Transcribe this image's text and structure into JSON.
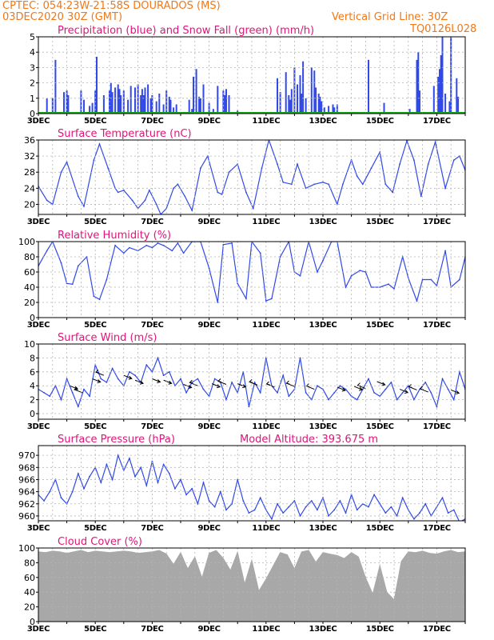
{
  "header": {
    "line1": "CPTEC:   054:23W-21:58S   DOURADOS (MS)",
    "line2": "03DEC2020 30Z (GMT)",
    "vgrid": "Vertical Grid Line: 30Z",
    "code": "TQ0126L028"
  },
  "colors": {
    "header": "#f07818",
    "title": "#e0147a",
    "series": "#3049e8",
    "snow": "#1aa81a",
    "cloud": "#a8a8a8",
    "grid": "#b4b4b4"
  },
  "chart_data": [
    {
      "id": "precip",
      "type": "bar",
      "title": "Precipitation (blue) and Snow Fall (green) (mm/h)",
      "ylim": [
        0,
        5
      ],
      "yticks": [
        0,
        1,
        2,
        3,
        4,
        5
      ],
      "xticks": [
        "3DEC",
        "5DEC",
        "7DEC",
        "9DEC",
        "11DEC",
        "13DEC",
        "15DEC",
        "17DEC"
      ],
      "x": [
        3.3,
        3.5,
        3.6,
        3.9,
        4.0,
        4.05,
        4.5,
        4.6,
        4.8,
        4.9,
        5.0,
        5.05,
        5.3,
        5.5,
        5.55,
        5.6,
        5.7,
        5.8,
        5.85,
        5.9,
        6.0,
        6.15,
        6.25,
        6.4,
        6.5,
        6.6,
        6.65,
        6.7,
        6.75,
        6.85,
        6.95,
        7.0,
        7.15,
        7.25,
        7.4,
        7.5,
        7.6,
        7.65,
        7.75,
        7.85,
        8.3,
        8.4,
        8.45,
        8.55,
        8.65,
        8.7,
        8.8,
        9.0,
        9.15,
        9.3,
        9.5,
        9.55,
        9.6,
        9.7,
        10.0,
        11.4,
        11.5,
        11.7,
        11.8,
        11.85,
        11.9,
        12.0,
        12.1,
        12.2,
        12.25,
        12.3,
        12.4,
        12.6,
        12.7,
        12.75,
        12.85,
        12.9,
        12.95,
        13.05,
        13.2,
        13.35,
        13.4,
        13.5,
        14.6,
        15.15,
        16.05,
        16.3,
        16.35,
        16.4,
        16.9,
        17.05,
        17.1,
        17.15,
        17.2,
        17.3,
        17.45,
        17.5,
        17.7,
        17.75
      ],
      "values": [
        1.0,
        1.0,
        3.5,
        1.4,
        1.5,
        1.2,
        1.5,
        0.9,
        0.5,
        0.7,
        1.5,
        3.7,
        1.2,
        1.5,
        2.0,
        1.4,
        1.7,
        1.9,
        1.6,
        1.2,
        1.5,
        0.9,
        1.8,
        1.7,
        1.9,
        1.2,
        1.6,
        1.2,
        1.7,
        1.9,
        1.0,
        1.2,
        0.8,
        1.3,
        0.6,
        1.5,
        1.1,
        0.9,
        0.4,
        0.6,
        0.9,
        0.3,
        2.4,
        2.9,
        1.1,
        1.0,
        1.9,
        0.7,
        0.3,
        1.8,
        1.5,
        1.2,
        1.6,
        1.2,
        0.2,
        2.3,
        1.4,
        2.7,
        1.2,
        0.9,
        1.6,
        3.0,
        1.9,
        2.5,
        1.3,
        3.4,
        1.0,
        3.0,
        2.8,
        1.7,
        1.3,
        1.1,
        0.8,
        0.4,
        0.5,
        0.6,
        0.4,
        0.6,
        3.5,
        0.7,
        0.3,
        3.5,
        4.0,
        1.5,
        1.8,
        2.4,
        2.9,
        3.8,
        5.0,
        1.3,
        0.8,
        5.0,
        2.3,
        1.1
      ]
    },
    {
      "id": "temp",
      "type": "line",
      "title": "Surface Temperature (nC)",
      "ylim": [
        17.5,
        36
      ],
      "yticks": [
        20,
        24,
        28,
        32,
        36
      ],
      "xticks": [
        "3DEC",
        "5DEC",
        "7DEC",
        "9DEC",
        "11DEC",
        "13DEC",
        "15DEC",
        "17DEC"
      ],
      "x": [
        3.0,
        3.3,
        3.5,
        3.8,
        4.0,
        4.4,
        4.6,
        4.95,
        5.15,
        5.45,
        5.7,
        5.8,
        6.0,
        6.3,
        6.5,
        6.75,
        6.9,
        7.15,
        7.3,
        7.5,
        7.75,
        7.9,
        8.15,
        8.4,
        8.7,
        8.95,
        9.3,
        9.45,
        9.7,
        10.0,
        10.3,
        10.55,
        10.85,
        11.1,
        11.4,
        11.6,
        11.9,
        12.1,
        12.4,
        12.7,
        13.0,
        13.2,
        13.5,
        13.7,
        14.0,
        14.2,
        14.4,
        14.7,
        15.0,
        15.2,
        15.45,
        15.7,
        15.95,
        16.2,
        16.45,
        16.7,
        16.95,
        17.3,
        17.6,
        17.8,
        18.0
      ],
      "values": [
        24.5,
        21.0,
        20.0,
        28.0,
        30.5,
        22.0,
        19.5,
        31.0,
        35.0,
        29.0,
        24.0,
        23.0,
        23.5,
        21.0,
        19.0,
        21.0,
        23.5,
        20.0,
        17.5,
        19.0,
        24.0,
        25.0,
        22.0,
        18.5,
        29.0,
        32.0,
        23.0,
        22.5,
        28.0,
        30.0,
        23.0,
        19.0,
        29.0,
        36.0,
        30.0,
        25.5,
        25.0,
        30.0,
        24.0,
        25.0,
        25.5,
        25.0,
        20.0,
        25.0,
        31.0,
        27.0,
        25.0,
        29.0,
        33.0,
        25.0,
        23.0,
        30.0,
        35.8,
        31.0,
        22.0,
        30.0,
        35.5,
        24.0,
        31.0,
        32.0,
        28.5
      ]
    },
    {
      "id": "rh",
      "type": "line",
      "title": "Relative Humidity (%)",
      "ylim": [
        0,
        100
      ],
      "yticks": [
        0,
        20,
        40,
        60,
        80,
        100
      ],
      "xticks": [
        "3DEC",
        "5DEC",
        "7DEC",
        "9DEC",
        "11DEC",
        "13DEC",
        "15DEC",
        "17DEC"
      ],
      "x": [
        3.0,
        3.3,
        3.5,
        3.8,
        4.0,
        4.2,
        4.4,
        4.7,
        4.95,
        5.15,
        5.4,
        5.7,
        6.0,
        6.2,
        6.5,
        6.8,
        7.0,
        7.2,
        7.4,
        7.7,
        7.9,
        8.1,
        8.4,
        8.7,
        9.0,
        9.3,
        9.5,
        9.8,
        10.0,
        10.3,
        10.5,
        10.8,
        11.0,
        11.2,
        11.5,
        11.8,
        12.0,
        12.2,
        12.5,
        12.8,
        13.0,
        13.3,
        13.5,
        13.8,
        14.0,
        14.3,
        14.5,
        14.7,
        15.0,
        15.3,
        15.5,
        15.8,
        16.0,
        16.3,
        16.5,
        16.8,
        17.0,
        17.3,
        17.5,
        17.8,
        18.0
      ],
      "values": [
        68,
        88,
        100,
        72,
        45,
        44,
        68,
        80,
        28,
        24,
        50,
        95,
        85,
        92,
        88,
        95,
        92,
        98,
        95,
        88,
        98,
        85,
        100,
        100,
        65,
        20,
        96,
        98,
        45,
        25,
        100,
        85,
        22,
        25,
        80,
        100,
        60,
        55,
        100,
        60,
        75,
        100,
        100,
        40,
        55,
        62,
        60,
        40,
        40,
        44,
        38,
        80,
        52,
        22,
        50,
        50,
        42,
        88,
        40,
        50,
        80
      ]
    },
    {
      "id": "wind",
      "type": "line",
      "title": "Surface Wind (m/s)",
      "ylim": [
        -0.8,
        10
      ],
      "yticks": [
        0,
        2,
        4,
        6,
        8,
        10
      ],
      "xticks": [
        "3DEC",
        "5DEC",
        "7DEC",
        "9DEC",
        "11DEC",
        "13DEC",
        "15DEC",
        "17DEC"
      ],
      "x": [
        3.0,
        3.2,
        3.4,
        3.6,
        3.8,
        4.0,
        4.2,
        4.4,
        4.6,
        4.8,
        5.0,
        5.2,
        5.4,
        5.6,
        5.8,
        6.0,
        6.2,
        6.4,
        6.6,
        6.8,
        7.0,
        7.2,
        7.4,
        7.6,
        7.8,
        8.0,
        8.2,
        8.4,
        8.6,
        8.8,
        9.0,
        9.2,
        9.4,
        9.6,
        9.8,
        10.0,
        10.2,
        10.4,
        10.6,
        10.8,
        11.0,
        11.2,
        11.4,
        11.6,
        11.8,
        12.0,
        12.2,
        12.4,
        12.6,
        12.8,
        13.0,
        13.2,
        13.4,
        13.6,
        13.8,
        14.0,
        14.2,
        14.4,
        14.6,
        14.8,
        15.0,
        15.2,
        15.4,
        15.6,
        15.8,
        16.0,
        16.2,
        16.4,
        16.6,
        16.8,
        17.0,
        17.2,
        17.4,
        17.6,
        17.8,
        18.0
      ],
      "values": [
        3.5,
        3.0,
        2.5,
        4.0,
        2.0,
        5.0,
        3.0,
        1.0,
        3.5,
        2.5,
        7.0,
        5.0,
        4.5,
        6.5,
        5.0,
        4.0,
        6.0,
        5.5,
        4.5,
        7.0,
        6.0,
        8.0,
        5.5,
        6.0,
        4.0,
        5.0,
        3.0,
        4.5,
        5.0,
        3.5,
        2.5,
        5.0,
        4.5,
        2.0,
        4.5,
        3.0,
        6.0,
        1.0,
        4.5,
        3.0,
        8.0,
        4.0,
        3.0,
        5.5,
        2.5,
        3.5,
        8.0,
        3.0,
        2.0,
        4.0,
        3.5,
        2.0,
        3.0,
        4.0,
        3.5,
        2.5,
        2.0,
        3.5,
        5.0,
        3.0,
        2.5,
        3.5,
        4.5,
        2.0,
        3.0,
        4.0,
        2.0,
        3.5,
        4.5,
        3.0,
        1.0,
        5.0,
        3.5,
        2.0,
        6.0,
        3.5
      ]
    },
    {
      "id": "pres",
      "type": "line",
      "title": "Surface Pressure (hPa)",
      "subtitle": "Model Altitude: 393.675  m",
      "ylim": [
        959.2,
        971.6
      ],
      "yticks": [
        960,
        962,
        964,
        966,
        968,
        970
      ],
      "xticks": [
        "3DEC",
        "5DEC",
        "7DEC",
        "9DEC",
        "11DEC",
        "13DEC",
        "15DEC",
        "17DEC"
      ],
      "x": [
        3.0,
        3.2,
        3.4,
        3.6,
        3.8,
        4.0,
        4.2,
        4.4,
        4.6,
        4.8,
        5.0,
        5.2,
        5.4,
        5.6,
        5.8,
        6.0,
        6.2,
        6.4,
        6.6,
        6.8,
        7.0,
        7.2,
        7.4,
        7.6,
        7.8,
        8.0,
        8.2,
        8.4,
        8.6,
        8.8,
        9.0,
        9.2,
        9.4,
        9.6,
        9.8,
        10.0,
        10.2,
        10.4,
        10.6,
        10.8,
        11.0,
        11.2,
        11.4,
        11.6,
        11.8,
        12.0,
        12.2,
        12.4,
        12.6,
        12.8,
        13.0,
        13.2,
        13.4,
        13.6,
        13.8,
        14.0,
        14.2,
        14.4,
        14.6,
        14.8,
        15.0,
        15.2,
        15.4,
        15.6,
        15.8,
        16.0,
        16.2,
        16.4,
        16.6,
        16.8,
        17.0,
        17.2,
        17.4,
        17.6,
        17.8,
        18.0
      ],
      "values": [
        963.5,
        962.5,
        964.0,
        966.0,
        963.0,
        962.0,
        964.0,
        967.0,
        964.5,
        966.5,
        968.0,
        965.5,
        968.5,
        966.0,
        970.0,
        967.5,
        969.5,
        966.5,
        968.0,
        965.0,
        969.0,
        965.5,
        968.5,
        967.0,
        964.5,
        966.0,
        963.5,
        964.5,
        962.0,
        965.5,
        962.5,
        961.5,
        964.0,
        961.0,
        962.0,
        966.0,
        962.5,
        960.5,
        961.0,
        963.0,
        961.0,
        959.5,
        962.0,
        960.5,
        961.5,
        962.5,
        960.0,
        961.5,
        962.5,
        961.0,
        963.0,
        960.0,
        961.0,
        962.5,
        960.5,
        963.5,
        961.0,
        962.0,
        961.5,
        963.5,
        962.0,
        960.5,
        961.5,
        960.0,
        963.0,
        961.0,
        959.5,
        960.5,
        962.0,
        960.0,
        961.5,
        963.0,
        960.5,
        961.0,
        959.0,
        959.5
      ]
    },
    {
      "id": "cloud",
      "type": "bar",
      "title": "Cloud Cover (%)",
      "ylim": [
        0,
        100
      ],
      "yticks": [
        0,
        20,
        40,
        60,
        80,
        100
      ],
      "xticks": [
        "3DEC",
        "5DEC",
        "7DEC",
        "9DEC",
        "11DEC",
        "13DEC",
        "15DEC",
        "17DEC"
      ],
      "x": [
        3.0,
        3.25,
        3.5,
        3.75,
        4.0,
        4.25,
        4.5,
        4.75,
        5.0,
        5.25,
        5.5,
        5.75,
        6.0,
        6.25,
        6.5,
        6.75,
        7.0,
        7.25,
        7.5,
        7.75,
        8.0,
        8.25,
        8.5,
        8.75,
        9.0,
        9.25,
        9.5,
        9.75,
        10.0,
        10.25,
        10.5,
        10.75,
        11.0,
        11.25,
        11.5,
        11.75,
        12.0,
        12.25,
        12.5,
        12.75,
        13.0,
        13.25,
        13.5,
        13.75,
        14.0,
        14.25,
        14.5,
        14.75,
        15.0,
        15.25,
        15.5,
        15.75,
        16.0,
        16.25,
        16.5,
        16.75,
        17.0,
        17.25,
        17.5,
        17.75,
        18.0
      ],
      "values": [
        95,
        94,
        96,
        95,
        93,
        95,
        97,
        94,
        96,
        95,
        94,
        95,
        96,
        95,
        93,
        94,
        95,
        97,
        92,
        78,
        94,
        72,
        88,
        60,
        93,
        97,
        86,
        70,
        95,
        52,
        84,
        42,
        58,
        76,
        94,
        91,
        72,
        95,
        97,
        81,
        94,
        92,
        90,
        86,
        94,
        88,
        60,
        38,
        77,
        40,
        30,
        82,
        95,
        94,
        96,
        93,
        92,
        95,
        97,
        94,
        95
      ]
    }
  ]
}
